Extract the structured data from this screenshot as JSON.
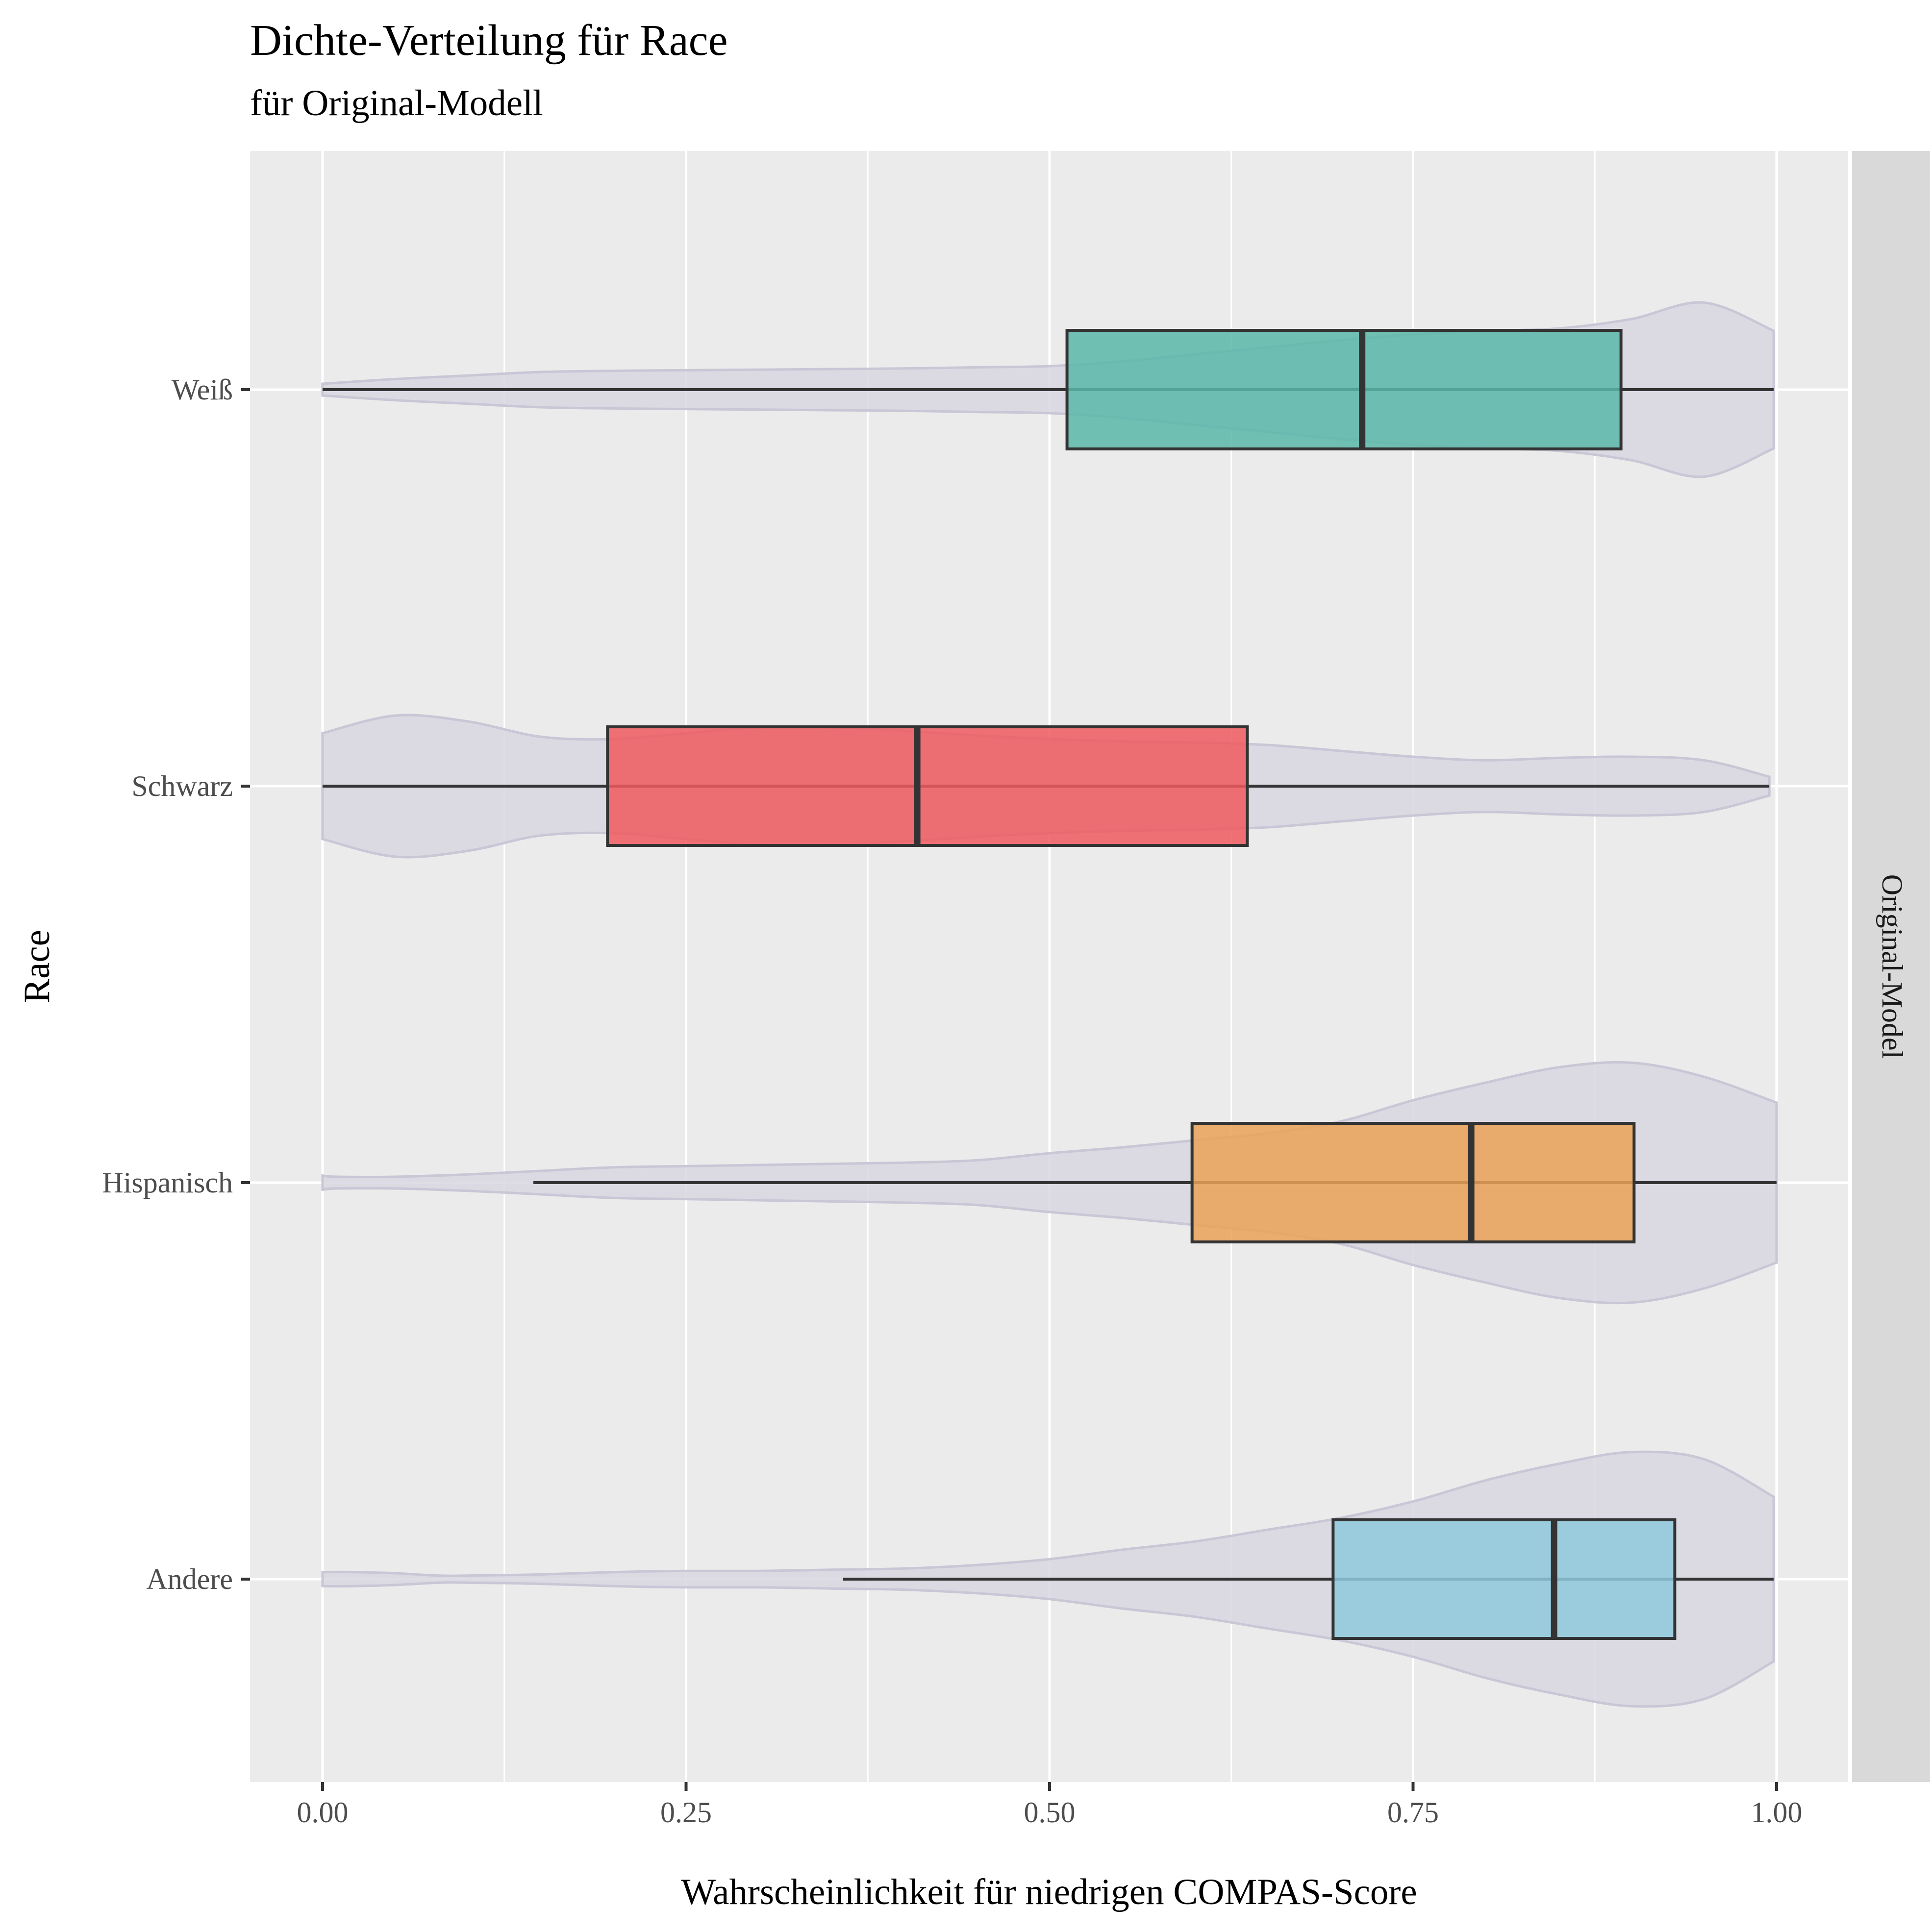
{
  "chart_data": {
    "type": "boxplot-violin",
    "orientation": "horizontal",
    "title": "Dichte-Verteilung für Race",
    "subtitle": "für Original-Modell",
    "xlabel": "Wahrscheinlichkeit für niedrigen COMPAS-Score",
    "ylabel": "Race",
    "facet_label": "Original-Model",
    "xlim": [
      -0.025,
      1.05
    ],
    "x_ticks": [
      {
        "value": 0.0,
        "label": "0.00"
      },
      {
        "value": 0.25,
        "label": "0.25"
      },
      {
        "value": 0.5,
        "label": "0.50"
      },
      {
        "value": 0.75,
        "label": "0.75"
      },
      {
        "value": 1.0,
        "label": "1.00"
      }
    ],
    "grid": true,
    "series": [
      {
        "category": "Weiß",
        "color": "#5bb7a9",
        "whisker_low": 0.0,
        "q1": 0.512,
        "median": 0.715,
        "q3": 0.893,
        "whisker_high": 0.998,
        "violin_x": [
          0.0,
          0.05,
          0.1,
          0.15,
          0.2,
          0.25,
          0.3,
          0.35,
          0.4,
          0.45,
          0.5,
          0.55,
          0.6,
          0.65,
          0.7,
          0.75,
          0.8,
          0.85,
          0.9,
          0.95,
          0.998
        ],
        "violin_density": [
          0.05,
          0.09,
          0.12,
          0.15,
          0.16,
          0.165,
          0.17,
          0.175,
          0.18,
          0.19,
          0.2,
          0.24,
          0.3,
          0.36,
          0.42,
          0.47,
          0.5,
          0.52,
          0.6,
          0.74,
          0.5
        ]
      },
      {
        "category": "Schwarz",
        "color": "#ee5a5f",
        "whisker_low": 0.0,
        "q1": 0.196,
        "median": 0.409,
        "q3": 0.636,
        "whisker_high": 0.995,
        "violin_x": [
          0.0,
          0.05,
          0.1,
          0.15,
          0.2,
          0.25,
          0.3,
          0.35,
          0.4,
          0.45,
          0.5,
          0.55,
          0.6,
          0.65,
          0.7,
          0.75,
          0.8,
          0.85,
          0.9,
          0.95,
          0.995
        ],
        "violin_density": [
          0.45,
          0.6,
          0.55,
          0.42,
          0.4,
          0.45,
          0.5,
          0.5,
          0.47,
          0.43,
          0.4,
          0.38,
          0.37,
          0.35,
          0.3,
          0.25,
          0.22,
          0.24,
          0.25,
          0.22,
          0.08
        ]
      },
      {
        "category": "Hispanisch",
        "color": "#eba257",
        "whisker_low": 0.145,
        "q1": 0.598,
        "median": 0.79,
        "q3": 0.902,
        "whisker_high": 1.0,
        "violin_x": [
          0.0,
          0.01,
          0.05,
          0.1,
          0.15,
          0.2,
          0.25,
          0.3,
          0.35,
          0.4,
          0.45,
          0.5,
          0.55,
          0.6,
          0.65,
          0.7,
          0.75,
          0.8,
          0.85,
          0.9,
          0.95,
          1.0
        ],
        "violin_density": [
          0.06,
          0.05,
          0.05,
          0.07,
          0.1,
          0.13,
          0.14,
          0.15,
          0.16,
          0.17,
          0.19,
          0.25,
          0.3,
          0.36,
          0.42,
          0.52,
          0.7,
          0.85,
          0.98,
          1.02,
          0.9,
          0.68
        ]
      },
      {
        "category": "Andere",
        "color": "#8fc9dd",
        "whisker_low": 0.358,
        "q1": 0.695,
        "median": 0.847,
        "q3": 0.93,
        "whisker_high": 0.998,
        "violin_x": [
          0.0,
          0.02,
          0.05,
          0.08,
          0.1,
          0.15,
          0.2,
          0.25,
          0.3,
          0.35,
          0.4,
          0.45,
          0.5,
          0.55,
          0.6,
          0.65,
          0.7,
          0.75,
          0.8,
          0.85,
          0.9,
          0.95,
          0.998
        ],
        "violin_density": [
          0.06,
          0.06,
          0.05,
          0.03,
          0.03,
          0.04,
          0.06,
          0.07,
          0.07,
          0.08,
          0.09,
          0.12,
          0.17,
          0.25,
          0.32,
          0.42,
          0.52,
          0.66,
          0.84,
          0.98,
          1.08,
          1.02,
          0.7
        ]
      }
    ]
  }
}
